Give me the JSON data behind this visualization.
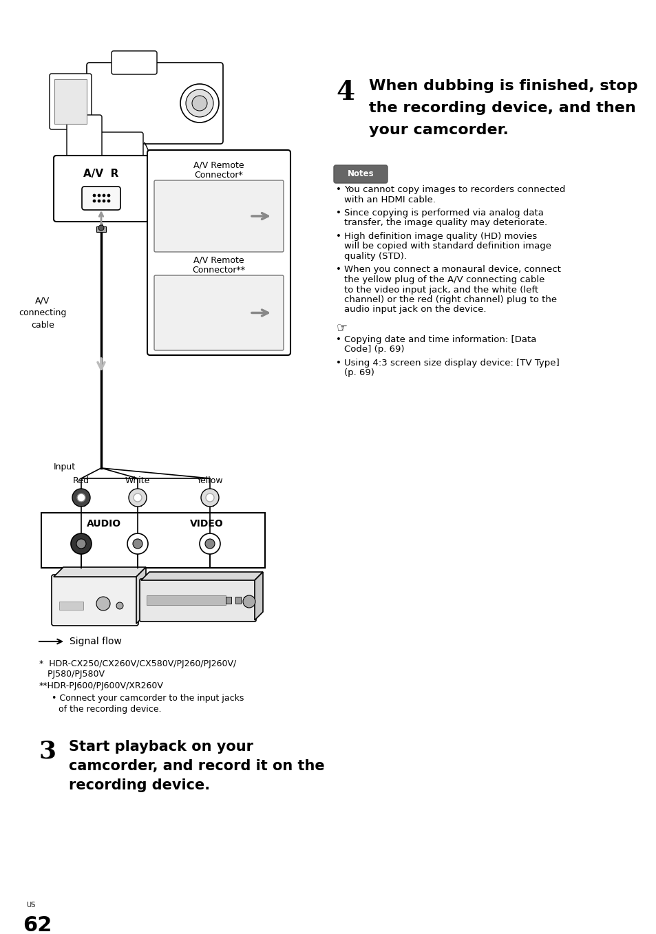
{
  "page_num": "62",
  "page_sub": "US",
  "bg_color": "#ffffff",
  "step3_number": "3",
  "step3_text_line1": "Start playback on your",
  "step3_text_line2": "camcorder, and record it on the",
  "step3_text_line3": "recording device.",
  "step4_number": "4",
  "step4_text_line1": "When dubbing is finished, stop",
  "step4_text_line2": "the recording device, and then",
  "step4_text_line3": "your camcorder.",
  "notes_label": "Notes",
  "notes_bullets": [
    "You cannot copy images to recorders connected\nwith an HDMI cable.",
    "Since copying is performed via analog data\ntransfer, the image quality may deteriorate.",
    "High definition image quality (HD) movies\nwill be copied with standard definition image\nquality (STD).",
    "When you connect a monaural device, connect\nthe yellow plug of the A/V connecting cable\nto the video input jack, and the white (left\nchannel) or the red (right channel) plug to the\naudio input jack on the device."
  ],
  "see_also_bullets": [
    "Copying date and time information: [Data\nCode] (p. 69)",
    "Using 4:3 screen size display device: [TV Type]\n(p. 69)"
  ],
  "footnote1": "*  HDR-CX250/CX260V/CX580V/PJ260/PJ260V/",
  "footnote1b": "   PJ580/PJ580V",
  "footnote2": "**HDR-PJ600/PJ600V/XR260V",
  "footnote2_bullet1": "Connect your camcorder to the input jacks",
  "footnote2_bullet2": "of the recording device.",
  "signal_flow_label": "Signal flow",
  "av_label": "A/V  R",
  "av_connecting_cable_1": "A/V",
  "av_connecting_cable_2": "connecting",
  "av_connecting_cable_3": "cable",
  "av_remote1_1": "A/V Remote",
  "av_remote1_2": "Connector*",
  "av_remote2_1": "A/V Remote",
  "av_remote2_2": "Connector**",
  "input_label": "Input",
  "red_label": "Red",
  "white_label": "White",
  "yellow_label": "Yellow",
  "audio_label": "AUDIO",
  "video_label": "VIDEO"
}
